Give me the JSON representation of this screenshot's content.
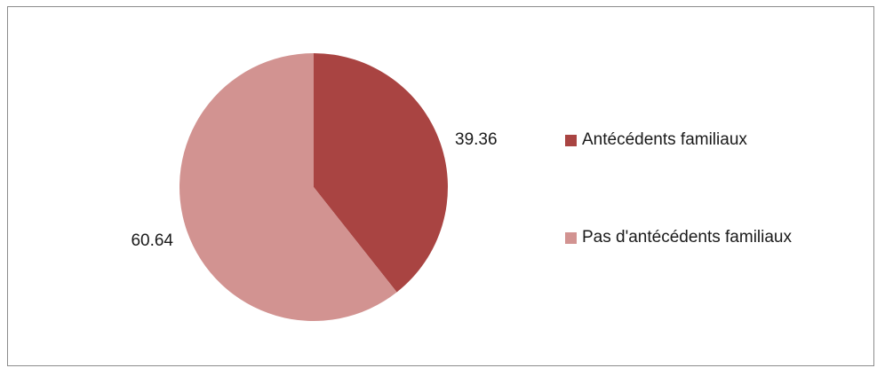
{
  "chart_data": {
    "type": "pie",
    "categories": [
      "Antécédents familiaux",
      "Pas d'antécédents familiaux"
    ],
    "values": [
      39.36,
      60.64
    ],
    "data_labels": [
      "39.36",
      "60.64"
    ],
    "colors": [
      "#a94442",
      "#d29391"
    ],
    "start_angle_deg": 0,
    "direction": "clockwise",
    "legend": "right",
    "title": ""
  }
}
